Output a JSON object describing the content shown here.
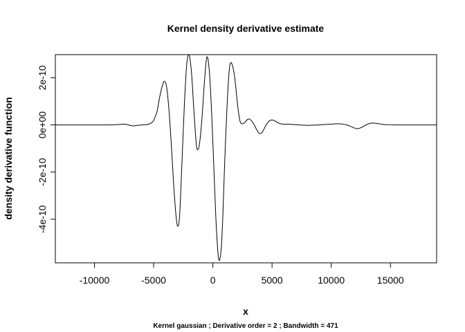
{
  "chart_data": {
    "type": "line",
    "title": "Kernel density derivative estimate",
    "xlabel": "x",
    "ylabel": "density derivative function",
    "subtitle": "Kernel gaussian ; Derivative order =  2 ; Bandwidth =  471",
    "xlim": [
      -13300,
      18900
    ],
    "ylim": [
      -5.85e-10,
      2.98e-10
    ],
    "x_ticks": [
      -10000,
      -5000,
      0,
      5000,
      10000,
      15000
    ],
    "x_tick_labels": [
      "-10000",
      "-5000",
      "0",
      "5000",
      "10000",
      "15000"
    ],
    "y_ticks": [
      2e-10,
      0,
      -2e-10,
      -4e-10
    ],
    "y_tick_labels": [
      "2e-10",
      "0e+00",
      "-2e-10",
      "-4e-10"
    ],
    "grid": false,
    "legend": "none",
    "series": [
      {
        "color": "#000000",
        "x": [
          -13300,
          -9000,
          -8200,
          -7600,
          -7300,
          -7000,
          -6700,
          -6400,
          -6000,
          -5500,
          -5100,
          -4900,
          -4700,
          -4500,
          -4300,
          -4100,
          -3900,
          -3700,
          -3500,
          -3300,
          -3100,
          -2950,
          -2800,
          -2600,
          -2400,
          -2200,
          -2000,
          -1800,
          -1600,
          -1400,
          -1250,
          -1100,
          -900,
          -700,
          -500,
          -300,
          -100,
          100,
          300,
          500,
          700,
          850,
          1000,
          1200,
          1400,
          1600,
          1850,
          2100,
          2300,
          2500,
          2700,
          2900,
          3100,
          3300,
          3500,
          3700,
          3900,
          4100,
          4300,
          4500,
          4800,
          5100,
          5400,
          5700,
          6000,
          6300,
          6700,
          7200,
          8000,
          8600,
          9000,
          9500,
          10000,
          10500,
          11000,
          11300,
          11600,
          11900,
          12200,
          12500,
          12800,
          13100,
          13500,
          14000,
          14600,
          15500,
          18900
        ],
        "y": [
          0,
          0,
          1e-12,
          3e-12,
          2e-12,
          -2e-12,
          -4e-12,
          -2e-12,
          0,
          2e-12,
          1.2e-11,
          3e-11,
          6e-11,
          1.15e-10,
          1.6e-10,
          1.85e-10,
          1.6e-10,
          6e-11,
          -9e-11,
          -2.6e-10,
          -3.9e-10,
          -4.3e-10,
          -3.8e-10,
          -1.5e-10,
          9e-11,
          2.6e-10,
          2.95e-10,
          2.2e-10,
          6e-11,
          -8e-11,
          -1.05e-10,
          -7e-11,
          4e-11,
          1.9e-10,
          2.88e-10,
          2.3e-10,
          5e-11,
          -2e-10,
          -4.4e-10,
          -5.7e-10,
          -5.3e-10,
          -3.8e-10,
          -1.6e-10,
          8e-11,
          2.4e-10,
          2.6e-10,
          2e-10,
          8e-11,
          1.5e-11,
          5e-12,
          1e-11,
          2.2e-11,
          2.5e-11,
          1.5e-11,
          0,
          -2e-11,
          -3.5e-11,
          -3.5e-11,
          -2e-11,
          0,
          1.8e-11,
          2e-11,
          1.2e-11,
          5e-12,
          3e-12,
          3e-12,
          2e-12,
          0,
          -2e-12,
          -1e-12,
          0,
          2e-12,
          3e-12,
          5e-12,
          3e-12,
          0,
          -5e-12,
          -1.2e-11,
          -1.6e-11,
          -1.2e-11,
          -4e-12,
          4e-12,
          8e-12,
          5e-12,
          1e-12,
          0,
          0
        ]
      }
    ]
  }
}
